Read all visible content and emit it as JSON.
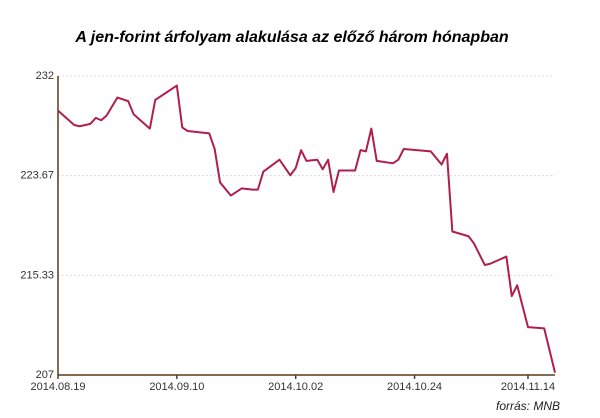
{
  "chart_data": {
    "type": "line",
    "title": "A jen-forint árfolyam alakulása az előző három hónapban",
    "source": "forrás: MNB",
    "x": [
      "2014.08.19",
      "2014.08.22",
      "2014.08.23",
      "2014.08.25",
      "2014.08.26",
      "2014.08.27",
      "2014.08.28",
      "2014.08.30",
      "2014.09.01",
      "2014.09.02",
      "2014.09.05",
      "2014.09.06",
      "2014.09.08",
      "2014.09.10",
      "2014.09.11",
      "2014.09.12",
      "2014.09.16",
      "2014.09.17",
      "2014.09.18",
      "2014.09.20",
      "2014.09.22",
      "2014.09.24",
      "2014.09.25",
      "2014.09.26",
      "2014.09.29",
      "2014.10.01",
      "2014.10.02",
      "2014.10.03",
      "2014.10.04",
      "2014.10.06",
      "2014.10.07",
      "2014.10.08",
      "2014.10.09",
      "2014.10.10",
      "2014.10.13",
      "2014.10.14",
      "2014.10.15",
      "2014.10.16",
      "2014.10.17",
      "2014.10.20",
      "2014.10.21",
      "2014.10.22",
      "2014.10.27",
      "2014.10.29",
      "2014.10.30",
      "2014.10.31",
      "2014.11.03",
      "2014.11.04",
      "2014.11.06",
      "2014.11.07",
      "2014.11.09",
      "2014.11.10",
      "2014.11.11",
      "2014.11.12",
      "2014.11.14",
      "2014.11.17",
      "2014.11.19"
    ],
    "series": [
      {
        "color": "#b01f4c",
        "values": [
          229.1,
          227.9,
          227.8,
          228.0,
          228.5,
          228.3,
          228.7,
          230.2,
          229.9,
          228.8,
          227.6,
          230.0,
          230.6,
          231.2,
          227.7,
          227.4,
          227.2,
          225.9,
          223.1,
          222.0,
          222.6,
          222.5,
          222.5,
          224.0,
          225.0,
          223.7,
          224.3,
          225.8,
          224.9,
          225.0,
          224.2,
          225.0,
          222.3,
          224.1,
          224.1,
          225.8,
          225.7,
          227.6,
          224.9,
          224.7,
          225.0,
          225.9,
          225.7,
          224.6,
          225.5,
          219.0,
          218.6,
          218.0,
          216.2,
          216.3,
          216.7,
          216.9,
          213.6,
          214.5,
          211.0,
          210.9,
          207.2
        ]
      }
    ],
    "xlim": [
      "2014.08.19",
      "2014.11.19"
    ],
    "xticks": [
      "2014.08.19",
      "2014.09.10",
      "2014.10.02",
      "2014.10.24",
      "2014.11.14"
    ],
    "ylim": [
      207,
      232
    ],
    "yticks": [
      207,
      215.33,
      223.67,
      232
    ],
    "grid": true
  }
}
